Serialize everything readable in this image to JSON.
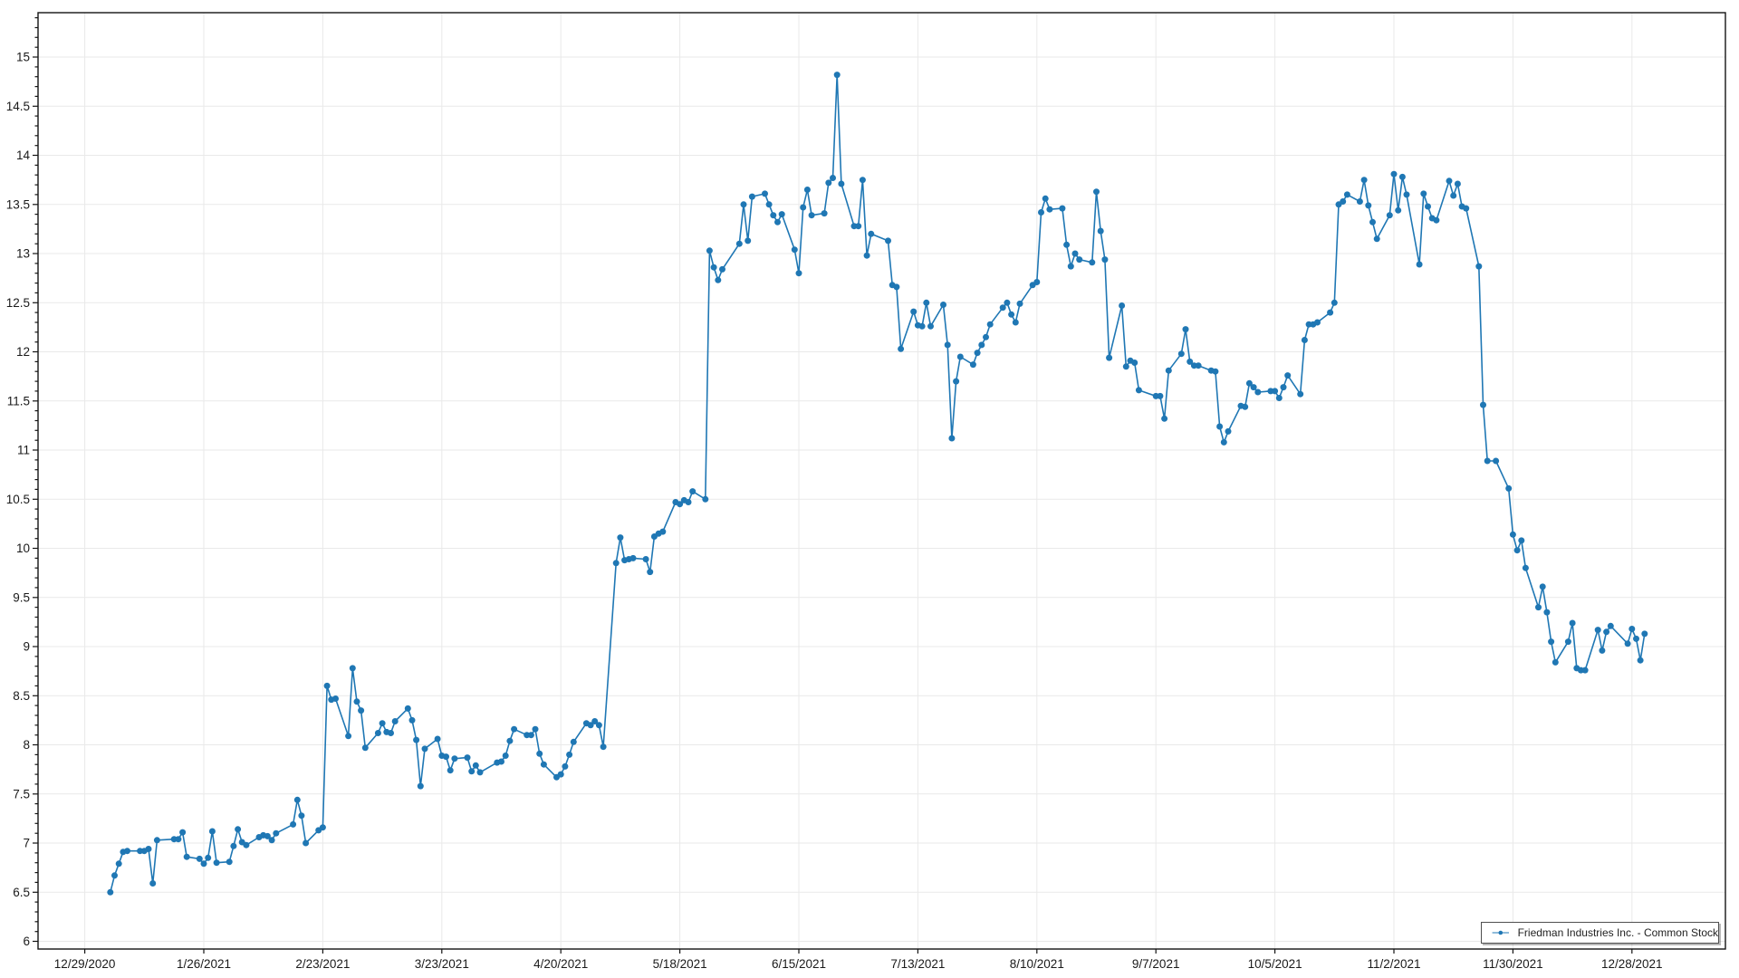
{
  "chart_data": {
    "type": "line",
    "title": "",
    "xlabel": "",
    "ylabel": "",
    "grid": true,
    "background_color": "#ffffff",
    "grid_color": "#e9e9e9",
    "axis_color": "#141414",
    "tick_label_color": "#1a1a1a",
    "x_domain": [
      "2020-12-18",
      "2022-01-19"
    ],
    "ylim": [
      5.922,
      15.452
    ],
    "y_minor_step": 0.1,
    "legend": {
      "position": "bottom-right",
      "label": "Friedman Industries Inc. - Common Stock"
    },
    "x_ticks": [
      {
        "date": "2020-12-29",
        "label": "12/29/2020"
      },
      {
        "date": "2021-01-26",
        "label": "1/26/2021"
      },
      {
        "date": "2021-02-23",
        "label": "2/23/2021"
      },
      {
        "date": "2021-03-23",
        "label": "3/23/2021"
      },
      {
        "date": "2021-04-20",
        "label": "4/20/2021"
      },
      {
        "date": "2021-05-18",
        "label": "5/18/2021"
      },
      {
        "date": "2021-06-15",
        "label": "6/15/2021"
      },
      {
        "date": "2021-07-13",
        "label": "7/13/2021"
      },
      {
        "date": "2021-08-10",
        "label": "8/10/2021"
      },
      {
        "date": "2021-09-07",
        "label": "9/7/2021"
      },
      {
        "date": "2021-10-05",
        "label": "10/5/2021"
      },
      {
        "date": "2021-11-02",
        "label": "11/2/2021"
      },
      {
        "date": "2021-11-30",
        "label": "11/30/2021"
      },
      {
        "date": "2021-12-28",
        "label": "12/28/2021"
      }
    ],
    "y_ticks": [
      6,
      6.5,
      7,
      7.5,
      8,
      8.5,
      9,
      9.5,
      10,
      10.5,
      11,
      11.5,
      12,
      12.5,
      13,
      13.5,
      14,
      14.5,
      15
    ],
    "series": [
      {
        "name": "Friedman Industries Inc. - Common Stock",
        "color": "#1f77b4",
        "marker_radius": 3.5,
        "line_width": 1.6,
        "points": [
          [
            "2021-01-04",
            6.5
          ],
          [
            "2021-01-05",
            6.67
          ],
          [
            "2021-01-06",
            6.79
          ],
          [
            "2021-01-07",
            6.91
          ],
          [
            "2021-01-08",
            6.92
          ],
          [
            "2021-01-11",
            6.92
          ],
          [
            "2021-01-12",
            6.92
          ],
          [
            "2021-01-13",
            6.94
          ],
          [
            "2021-01-14",
            6.59
          ],
          [
            "2021-01-15",
            7.03
          ],
          [
            "2021-01-19",
            7.04
          ],
          [
            "2021-01-20",
            7.04
          ],
          [
            "2021-01-21",
            7.11
          ],
          [
            "2021-01-22",
            6.86
          ],
          [
            "2021-01-25",
            6.84
          ],
          [
            "2021-01-26",
            6.79
          ],
          [
            "2021-01-27",
            6.85
          ],
          [
            "2021-01-28",
            7.12
          ],
          [
            "2021-01-29",
            6.8
          ],
          [
            "2021-02-01",
            6.81
          ],
          [
            "2021-02-02",
            6.97
          ],
          [
            "2021-02-03",
            7.14
          ],
          [
            "2021-02-04",
            7.01
          ],
          [
            "2021-02-05",
            6.98
          ],
          [
            "2021-02-08",
            7.06
          ],
          [
            "2021-02-09",
            7.08
          ],
          [
            "2021-02-10",
            7.07
          ],
          [
            "2021-02-11",
            7.03
          ],
          [
            "2021-02-12",
            7.1
          ],
          [
            "2021-02-16",
            7.19
          ],
          [
            "2021-02-17",
            7.44
          ],
          [
            "2021-02-18",
            7.28
          ],
          [
            "2021-02-19",
            7.0
          ],
          [
            "2021-02-22",
            7.13
          ],
          [
            "2021-02-23",
            7.16
          ],
          [
            "2021-02-24",
            8.6
          ],
          [
            "2021-02-25",
            8.46
          ],
          [
            "2021-02-26",
            8.47
          ],
          [
            "2021-03-01",
            8.09
          ],
          [
            "2021-03-02",
            8.78
          ],
          [
            "2021-03-03",
            8.44
          ],
          [
            "2021-03-04",
            8.35
          ],
          [
            "2021-03-05",
            7.97
          ],
          [
            "2021-03-08",
            8.12
          ],
          [
            "2021-03-09",
            8.22
          ],
          [
            "2021-03-10",
            8.13
          ],
          [
            "2021-03-11",
            8.12
          ],
          [
            "2021-03-12",
            8.24
          ],
          [
            "2021-03-15",
            8.37
          ],
          [
            "2021-03-16",
            8.25
          ],
          [
            "2021-03-17",
            8.05
          ],
          [
            "2021-03-18",
            7.58
          ],
          [
            "2021-03-19",
            7.96
          ],
          [
            "2021-03-22",
            8.06
          ],
          [
            "2021-03-23",
            7.89
          ],
          [
            "2021-03-24",
            7.88
          ],
          [
            "2021-03-25",
            7.74
          ],
          [
            "2021-03-26",
            7.86
          ],
          [
            "2021-03-29",
            7.87
          ],
          [
            "2021-03-30",
            7.73
          ],
          [
            "2021-03-31",
            7.79
          ],
          [
            "2021-04-01",
            7.72
          ],
          [
            "2021-04-05",
            7.82
          ],
          [
            "2021-04-06",
            7.83
          ],
          [
            "2021-04-07",
            7.89
          ],
          [
            "2021-04-08",
            8.04
          ],
          [
            "2021-04-09",
            8.16
          ],
          [
            "2021-04-12",
            8.1
          ],
          [
            "2021-04-13",
            8.1
          ],
          [
            "2021-04-14",
            8.16
          ],
          [
            "2021-04-15",
            7.91
          ],
          [
            "2021-04-16",
            7.8
          ],
          [
            "2021-04-19",
            7.67
          ],
          [
            "2021-04-20",
            7.7
          ],
          [
            "2021-04-21",
            7.78
          ],
          [
            "2021-04-22",
            7.9
          ],
          [
            "2021-04-23",
            8.03
          ],
          [
            "2021-04-26",
            8.22
          ],
          [
            "2021-04-27",
            8.2
          ],
          [
            "2021-04-28",
            8.24
          ],
          [
            "2021-04-29",
            8.2
          ],
          [
            "2021-04-30",
            7.98
          ],
          [
            "2021-05-03",
            9.85
          ],
          [
            "2021-05-04",
            10.11
          ],
          [
            "2021-05-05",
            9.88
          ],
          [
            "2021-05-06",
            9.89
          ],
          [
            "2021-05-07",
            9.9
          ],
          [
            "2021-05-10",
            9.89
          ],
          [
            "2021-05-11",
            9.76
          ],
          [
            "2021-05-12",
            10.12
          ],
          [
            "2021-05-13",
            10.15
          ],
          [
            "2021-05-14",
            10.17
          ],
          [
            "2021-05-17",
            10.47
          ],
          [
            "2021-05-18",
            10.45
          ],
          [
            "2021-05-19",
            10.49
          ],
          [
            "2021-05-20",
            10.47
          ],
          [
            "2021-05-21",
            10.58
          ],
          [
            "2021-05-24",
            10.5
          ],
          [
            "2021-05-25",
            13.03
          ],
          [
            "2021-05-26",
            12.86
          ],
          [
            "2021-05-27",
            12.73
          ],
          [
            "2021-05-28",
            12.84
          ],
          [
            "2021-06-01",
            13.1
          ],
          [
            "2021-06-02",
            13.5
          ],
          [
            "2021-06-03",
            13.13
          ],
          [
            "2021-06-04",
            13.58
          ],
          [
            "2021-06-07",
            13.61
          ],
          [
            "2021-06-08",
            13.5
          ],
          [
            "2021-06-09",
            13.39
          ],
          [
            "2021-06-10",
            13.32
          ],
          [
            "2021-06-11",
            13.4
          ],
          [
            "2021-06-14",
            13.04
          ],
          [
            "2021-06-15",
            12.8
          ],
          [
            "2021-06-16",
            13.47
          ],
          [
            "2021-06-17",
            13.65
          ],
          [
            "2021-06-18",
            13.39
          ],
          [
            "2021-06-21",
            13.41
          ],
          [
            "2021-06-22",
            13.72
          ],
          [
            "2021-06-23",
            13.77
          ],
          [
            "2021-06-24",
            14.82
          ],
          [
            "2021-06-25",
            13.71
          ],
          [
            "2021-06-28",
            13.28
          ],
          [
            "2021-06-29",
            13.28
          ],
          [
            "2021-06-30",
            13.75
          ],
          [
            "2021-07-01",
            12.98
          ],
          [
            "2021-07-02",
            13.2
          ],
          [
            "2021-07-06",
            13.13
          ],
          [
            "2021-07-07",
            12.68
          ],
          [
            "2021-07-08",
            12.66
          ],
          [
            "2021-07-09",
            12.03
          ],
          [
            "2021-07-12",
            12.41
          ],
          [
            "2021-07-13",
            12.27
          ],
          [
            "2021-07-14",
            12.26
          ],
          [
            "2021-07-15",
            12.5
          ],
          [
            "2021-07-16",
            12.26
          ],
          [
            "2021-07-19",
            12.48
          ],
          [
            "2021-07-20",
            12.07
          ],
          [
            "2021-07-21",
            11.12
          ],
          [
            "2021-07-22",
            11.7
          ],
          [
            "2021-07-23",
            11.95
          ],
          [
            "2021-07-26",
            11.87
          ],
          [
            "2021-07-27",
            11.99
          ],
          [
            "2021-07-28",
            12.07
          ],
          [
            "2021-07-29",
            12.15
          ],
          [
            "2021-07-30",
            12.28
          ],
          [
            "2021-08-02",
            12.45
          ],
          [
            "2021-08-03",
            12.5
          ],
          [
            "2021-08-04",
            12.38
          ],
          [
            "2021-08-05",
            12.3
          ],
          [
            "2021-08-06",
            12.49
          ],
          [
            "2021-08-09",
            12.68
          ],
          [
            "2021-08-10",
            12.71
          ],
          [
            "2021-08-11",
            13.42
          ],
          [
            "2021-08-12",
            13.56
          ],
          [
            "2021-08-13",
            13.45
          ],
          [
            "2021-08-16",
            13.46
          ],
          [
            "2021-08-17",
            13.09
          ],
          [
            "2021-08-18",
            12.87
          ],
          [
            "2021-08-19",
            13.0
          ],
          [
            "2021-08-20",
            12.94
          ],
          [
            "2021-08-23",
            12.91
          ],
          [
            "2021-08-24",
            13.63
          ],
          [
            "2021-08-25",
            13.23
          ],
          [
            "2021-08-26",
            12.94
          ],
          [
            "2021-08-27",
            11.94
          ],
          [
            "2021-08-30",
            12.47
          ],
          [
            "2021-08-31",
            11.85
          ],
          [
            "2021-09-01",
            11.91
          ],
          [
            "2021-09-02",
            11.89
          ],
          [
            "2021-09-03",
            11.61
          ],
          [
            "2021-09-07",
            11.55
          ],
          [
            "2021-09-08",
            11.55
          ],
          [
            "2021-09-09",
            11.32
          ],
          [
            "2021-09-10",
            11.81
          ],
          [
            "2021-09-13",
            11.98
          ],
          [
            "2021-09-14",
            12.23
          ],
          [
            "2021-09-15",
            11.9
          ],
          [
            "2021-09-16",
            11.86
          ],
          [
            "2021-09-17",
            11.86
          ],
          [
            "2021-09-20",
            11.81
          ],
          [
            "2021-09-21",
            11.8
          ],
          [
            "2021-09-22",
            11.24
          ],
          [
            "2021-09-23",
            11.08
          ],
          [
            "2021-09-24",
            11.19
          ],
          [
            "2021-09-27",
            11.45
          ],
          [
            "2021-09-28",
            11.44
          ],
          [
            "2021-09-29",
            11.68
          ],
          [
            "2021-09-30",
            11.64
          ],
          [
            "2021-10-01",
            11.59
          ],
          [
            "2021-10-04",
            11.6
          ],
          [
            "2021-10-05",
            11.6
          ],
          [
            "2021-10-06",
            11.53
          ],
          [
            "2021-10-07",
            11.64
          ],
          [
            "2021-10-08",
            11.76
          ],
          [
            "2021-10-11",
            11.57
          ],
          [
            "2021-10-12",
            12.12
          ],
          [
            "2021-10-13",
            12.28
          ],
          [
            "2021-10-14",
            12.28
          ],
          [
            "2021-10-15",
            12.3
          ],
          [
            "2021-10-18",
            12.4
          ],
          [
            "2021-10-19",
            12.5
          ],
          [
            "2021-10-20",
            13.5
          ],
          [
            "2021-10-21",
            13.53
          ],
          [
            "2021-10-22",
            13.6
          ],
          [
            "2021-10-25",
            13.53
          ],
          [
            "2021-10-26",
            13.75
          ],
          [
            "2021-10-27",
            13.49
          ],
          [
            "2021-10-28",
            13.32
          ],
          [
            "2021-10-29",
            13.15
          ],
          [
            "2021-11-01",
            13.39
          ],
          [
            "2021-11-02",
            13.81
          ],
          [
            "2021-11-03",
            13.44
          ],
          [
            "2021-11-04",
            13.78
          ],
          [
            "2021-11-05",
            13.6
          ],
          [
            "2021-11-08",
            12.89
          ],
          [
            "2021-11-09",
            13.61
          ],
          [
            "2021-11-10",
            13.48
          ],
          [
            "2021-11-11",
            13.36
          ],
          [
            "2021-11-12",
            13.34
          ],
          [
            "2021-11-15",
            13.74
          ],
          [
            "2021-11-16",
            13.59
          ],
          [
            "2021-11-17",
            13.71
          ],
          [
            "2021-11-18",
            13.48
          ],
          [
            "2021-11-19",
            13.46
          ],
          [
            "2021-11-22",
            12.87
          ],
          [
            "2021-11-23",
            11.46
          ],
          [
            "2021-11-24",
            10.89
          ],
          [
            "2021-11-26",
            10.89
          ],
          [
            "2021-11-29",
            10.61
          ],
          [
            "2021-11-30",
            10.14
          ],
          [
            "2021-12-01",
            9.98
          ],
          [
            "2021-12-02",
            10.08
          ],
          [
            "2021-12-03",
            9.8
          ],
          [
            "2021-12-06",
            9.4
          ],
          [
            "2021-12-07",
            9.61
          ],
          [
            "2021-12-08",
            9.35
          ],
          [
            "2021-12-09",
            9.05
          ],
          [
            "2021-12-10",
            8.84
          ],
          [
            "2021-12-13",
            9.05
          ],
          [
            "2021-12-14",
            9.24
          ],
          [
            "2021-12-15",
            8.78
          ],
          [
            "2021-12-16",
            8.76
          ],
          [
            "2021-12-17",
            8.76
          ],
          [
            "2021-12-20",
            9.17
          ],
          [
            "2021-12-21",
            8.96
          ],
          [
            "2021-12-22",
            9.15
          ],
          [
            "2021-12-23",
            9.21
          ],
          [
            "2021-12-27",
            9.03
          ],
          [
            "2021-12-28",
            9.18
          ],
          [
            "2021-12-29",
            9.08
          ],
          [
            "2021-12-30",
            8.86
          ],
          [
            "2021-12-31",
            9.13
          ]
        ]
      }
    ]
  }
}
